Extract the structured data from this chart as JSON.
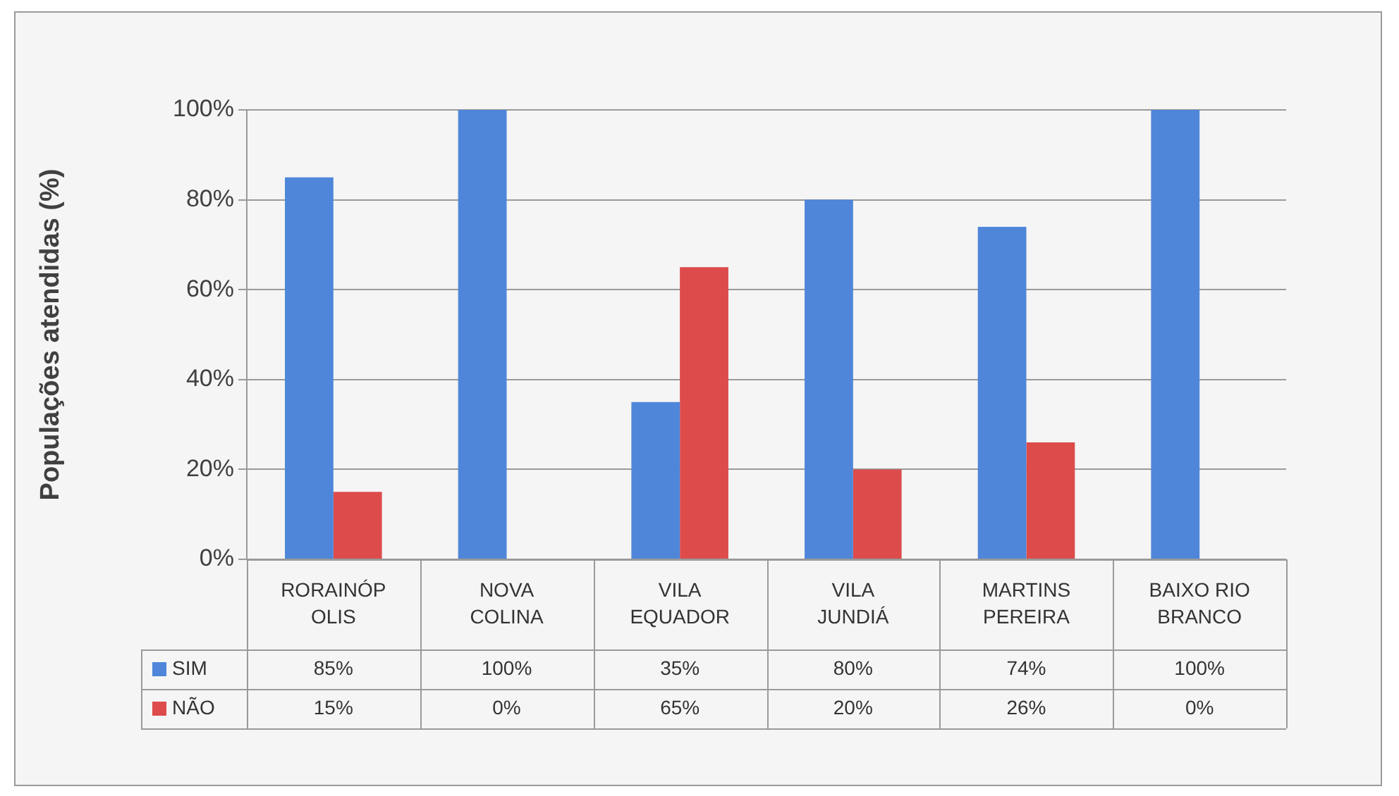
{
  "chart_data": {
    "type": "bar",
    "ylabel": "Populações atendidas (%)",
    "categories": [
      "RORAINÓPOLIS",
      "NOVA COLINA",
      "VILA EQUADOR",
      "VILA JUNDIÁ",
      "MARTINS PEREIRA",
      "BAIXO RIO BRANCO"
    ],
    "series": [
      {
        "name": "SIM",
        "color": "#4f86d9",
        "values": [
          85,
          100,
          35,
          80,
          74,
          100
        ],
        "value_labels": [
          "85%",
          "100%",
          "35%",
          "80%",
          "74%",
          "100%"
        ]
      },
      {
        "name": "NÃO",
        "color": "#dd4b4b",
        "values": [
          15,
          0,
          65,
          20,
          26,
          0
        ],
        "value_labels": [
          "15%",
          "0%",
          "65%",
          "20%",
          "26%",
          "0%"
        ]
      }
    ],
    "ylim": [
      0,
      100
    ],
    "yticks": [
      {
        "value": 0,
        "label": "0%"
      },
      {
        "value": 20,
        "label": "20%"
      },
      {
        "value": 40,
        "label": "40%"
      },
      {
        "value": 60,
        "label": "60%"
      },
      {
        "value": 80,
        "label": "80%"
      },
      {
        "value": 100,
        "label": "100%"
      }
    ],
    "grid": "y",
    "legend": "bottom"
  }
}
